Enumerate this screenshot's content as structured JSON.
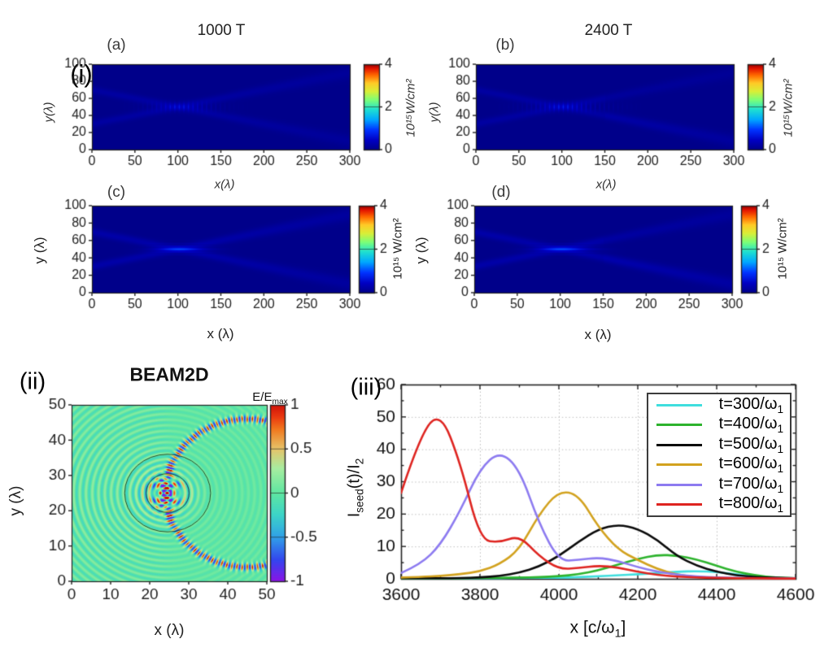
{
  "figure": {
    "background": "#ffffff",
    "section_labels": {
      "i": "(i)",
      "ii": "(ii)",
      "iii": "(iii)"
    },
    "description": "Multi-panel physics figure: crossing laser beam intensity maps at 1000 T and 2400 T, a BEAM2D field map, and seed intensity evolution curves."
  },
  "colormaps": {
    "jet": [
      [
        0,
        "#00008a"
      ],
      [
        0.11,
        "#0000c3"
      ],
      [
        0.23,
        "#0033ff"
      ],
      [
        0.35,
        "#00a7ff"
      ],
      [
        0.47,
        "#1fe0d0"
      ],
      [
        0.58,
        "#7bff78"
      ],
      [
        0.68,
        "#d8ef38"
      ],
      [
        0.78,
        "#ffc926"
      ],
      [
        0.87,
        "#ff6a00"
      ],
      [
        0.95,
        "#e21300"
      ],
      [
        1,
        "#8e0000"
      ]
    ],
    "field": [
      [
        0,
        "#8a14e6"
      ],
      [
        0.12,
        "#3345ee"
      ],
      [
        0.25,
        "#30a1e8"
      ],
      [
        0.375,
        "#3cd4c8"
      ],
      [
        0.5,
        "#5fe7a1"
      ],
      [
        0.64,
        "#a8eda0"
      ],
      [
        0.75,
        "#e6c46a"
      ],
      [
        0.86,
        "#f0791f"
      ],
      [
        0.93,
        "#ea3a10"
      ],
      [
        1,
        "#d01008"
      ]
    ]
  },
  "chart_data": [
    {
      "id": "a",
      "type": "heatmap",
      "panel_label": "(a)",
      "column_title": "1000 T",
      "xlabel": "x(λ)",
      "ylabel": "y(λ)",
      "xlim": [
        0,
        300
      ],
      "ylim": [
        0,
        100
      ],
      "xticks": [
        0,
        50,
        100,
        150,
        200,
        250,
        300
      ],
      "yticks": [
        0,
        20,
        40,
        60,
        80,
        100
      ],
      "colorbar": {
        "range": [
          0,
          4
        ],
        "ticks": [
          0,
          2,
          4
        ],
        "unit_label": "10¹⁵W/cm²"
      },
      "colormap": "jet",
      "content": "Instantaneous intensity of two laser beams crossing: beams enter left at y≈70 and y≈30, interfere near y=50 for x≈65-150 forming vertical fringe columns, exit right at y≈90 and y≈10.",
      "model": {
        "mode": "instant",
        "entry": [
          70,
          30
        ],
        "slope": 0.2,
        "beamAmp": 0.72,
        "cx": 107,
        "cw": 42,
        "fringeAmp": 1.1,
        "postBoost": [
          1.0,
          1.0
        ]
      }
    },
    {
      "id": "b",
      "type": "heatmap",
      "panel_label": "(b)",
      "column_title": "2400 T",
      "xlabel": "x(λ)",
      "ylabel": "y(λ)",
      "xlim": [
        0,
        300
      ],
      "ylim": [
        0,
        100
      ],
      "xticks": [
        0,
        50,
        100,
        150,
        200,
        250,
        300
      ],
      "yticks": [
        0,
        20,
        40,
        60,
        80,
        100
      ],
      "colorbar": {
        "range": [
          0,
          4
        ],
        "ticks": [
          0,
          2,
          4
        ],
        "unit_label": "10¹⁵W/cm²"
      },
      "colormap": "jet",
      "content": "Same as (a) at 2400 T: brighter interference fringes and enhanced transmitted beam toward bottom-right.",
      "model": {
        "mode": "instant",
        "entry": [
          70,
          30
        ],
        "slope": 0.2,
        "beamAmp": 0.72,
        "cx": 107,
        "cw": 48,
        "fringeAmp": 1.3,
        "postBoost": [
          1.25,
          0.8
        ]
      }
    },
    {
      "id": "c",
      "type": "heatmap",
      "panel_label": "(c)",
      "xlabel": "x (λ)",
      "ylabel": "y (λ)",
      "xlim": [
        0,
        300
      ],
      "ylim": [
        0,
        100
      ],
      "xticks": [
        0,
        50,
        100,
        150,
        200,
        250,
        300
      ],
      "yticks": [
        0,
        20,
        40,
        60,
        80,
        100
      ],
      "colorbar": {
        "range": [
          0,
          4
        ],
        "ticks": [
          0,
          2,
          4
        ],
        "unit_label": "10¹⁵ W/cm²"
      },
      "colormap": "jet",
      "content": "Time-averaged intensity at 1000 T: crossing beams with bright layered interaction region and hot orange core line at y=50, x≈70-140.",
      "model": {
        "mode": "avg",
        "entry": [
          70,
          30
        ],
        "slope": 0.2,
        "beamAmp": 0.92,
        "cx": 105,
        "cw": 34,
        "coreAmp": 1.6,
        "postBoost": [
          1.0,
          1.0
        ]
      }
    },
    {
      "id": "d",
      "type": "heatmap",
      "panel_label": "(d)",
      "xlabel": "x (λ)",
      "ylabel": "y (λ)",
      "xlim": [
        0,
        300
      ],
      "ylim": [
        0,
        100
      ],
      "xticks": [
        0,
        50,
        100,
        150,
        200,
        250,
        300
      ],
      "yticks": [
        0,
        20,
        40,
        60,
        80,
        100
      ],
      "colorbar": {
        "range": [
          0,
          4
        ],
        "ticks": [
          0,
          2,
          4
        ],
        "unit_label": "10¹⁵ W/cm²"
      },
      "colormap": "jet",
      "content": "Time-averaged intensity at 2400 T: as (c) with stronger transmitted beam toward bottom-right.",
      "model": {
        "mode": "avg",
        "entry": [
          70,
          30
        ],
        "slope": 0.2,
        "beamAmp": 0.92,
        "cx": 105,
        "cw": 36,
        "coreAmp": 1.75,
        "postBoost": [
          1.2,
          0.85
        ]
      }
    },
    {
      "id": "beam2d",
      "type": "heatmap",
      "title": "BEAM2D",
      "xlabel": "x (λ)",
      "ylabel": "y (λ)",
      "xlim": [
        0,
        50
      ],
      "ylim": [
        0,
        50
      ],
      "xticks": [
        0,
        10,
        20,
        30,
        40,
        50
      ],
      "yticks": [
        0,
        10,
        20,
        30,
        40,
        50
      ],
      "colorbar": {
        "range": [
          -1,
          1
        ],
        "ticks": [
          1,
          0.5,
          0,
          -0.5,
          -1
        ],
        "title_prefix": "E/E",
        "title_sub": "max"
      },
      "colormap": "field",
      "content": "Normalized field E/Emax: converging wavefronts from the left focus near (24,25) inside two concentric circles (r≈5.5λ and 11λ); strong curved caustic of alternating red/blue lobes near x≈23-31 and faint circular ripples on the right.",
      "circles": [
        {
          "cx": 24.6,
          "cy": 25,
          "r": 5.5
        },
        {
          "cx": 24.6,
          "cy": 25,
          "r": 11
        }
      ],
      "model": {
        "focus": [
          24.5,
          25
        ],
        "arcCenter": [
          45,
          25
        ],
        "arcR": 21
      }
    },
    {
      "id": "seed_evolution",
      "type": "line",
      "xlabel_parts": {
        "pre": "x [c/ω",
        "sub": "1",
        "post": "]"
      },
      "ylabel_parts": {
        "p1": "I",
        "s1": "seed",
        "p2": "(t)/I",
        "s2": "2"
      },
      "xlim": [
        3600,
        4600
      ],
      "ylim": [
        0,
        60
      ],
      "xticks": [
        3600,
        3800,
        4000,
        4200,
        4400,
        4600
      ],
      "yticks": [
        0,
        10,
        20,
        30,
        40,
        50,
        60
      ],
      "x_minor_step": 100,
      "y_minor_step": 5,
      "grid": "dotted",
      "legend_position": "top-right",
      "x": [
        3600,
        3650,
        3700,
        3750,
        3800,
        3850,
        3900,
        3950,
        4000,
        4050,
        4100,
        4150,
        4200,
        4250,
        4300,
        4350,
        4400,
        4450,
        4500,
        4550,
        4600
      ],
      "series": [
        {
          "name": "t=300/ω₁",
          "label_pre": "t=300/ω",
          "label_sub": "1",
          "color": "#3fdede",
          "values": [
            0.2,
            0.2,
            0.2,
            0.2,
            0.2,
            0.2,
            0.3,
            0.3,
            0.3,
            0.5,
            0.8,
            1.1,
            1.4,
            1.8,
            2.2,
            2.4,
            2.1,
            1.4,
            0.7,
            0.3,
            0.2
          ]
        },
        {
          "name": "t=400/ω₁",
          "label_pre": "t=400/ω",
          "label_sub": "1",
          "color": "#2db32d",
          "values": [
            0.2,
            0.2,
            0.2,
            0.2,
            0.3,
            0.3,
            0.4,
            0.5,
            0.8,
            1.4,
            2.6,
            4.4,
            6.2,
            7.4,
            7.2,
            6.0,
            4.0,
            2.2,
            1.0,
            0.4,
            0.2
          ]
        },
        {
          "name": "t=500/ω₁",
          "label_pre": "t=500/ω",
          "label_sub": "1",
          "color": "#0a0a0a",
          "values": [
            0.2,
            0.2,
            0.2,
            0.2,
            0.4,
            0.9,
            1.9,
            3.8,
            7.0,
            11.5,
            15.3,
            16.8,
            15.5,
            12.0,
            7.0,
            4.0,
            2.2,
            1.1,
            0.5,
            0.3,
            0.2
          ]
        },
        {
          "name": "t=600/ω₁",
          "label_pre": "t=600/ω",
          "label_sub": "1",
          "color": "#d2a21f",
          "values": [
            0.4,
            0.6,
            0.9,
            1.4,
            2.3,
            4.5,
            9.0,
            20.0,
            27.2,
            26.0,
            16.0,
            9.0,
            5.8,
            3.0,
            1.3,
            0.5,
            0.3,
            0.2,
            0.1,
            0.1,
            0.1
          ]
        },
        {
          "name": "t=700/ω₁",
          "label_pre": "t=700/ω",
          "label_sub": "1",
          "color": "#8d7bf0",
          "values": [
            1.8,
            4.5,
            10.5,
            21.0,
            34.0,
            39.4,
            34.0,
            17.0,
            5.5,
            5.8,
            6.6,
            5.5,
            3.6,
            2.2,
            1.3,
            0.7,
            0.4,
            0.3,
            0.2,
            0.2,
            0.2
          ]
        },
        {
          "name": "t=800/ω₁",
          "label_pre": "t=800/ω",
          "label_sub": "1",
          "color": "#de2420",
          "values": [
            26.5,
            45.0,
            51.5,
            36.0,
            12.0,
            11.2,
            13.4,
            7.0,
            3.0,
            3.3,
            4.1,
            3.5,
            2.2,
            1.2,
            0.7,
            0.4,
            0.3,
            0.2,
            0.2,
            0.1,
            0.1
          ]
        }
      ]
    }
  ]
}
